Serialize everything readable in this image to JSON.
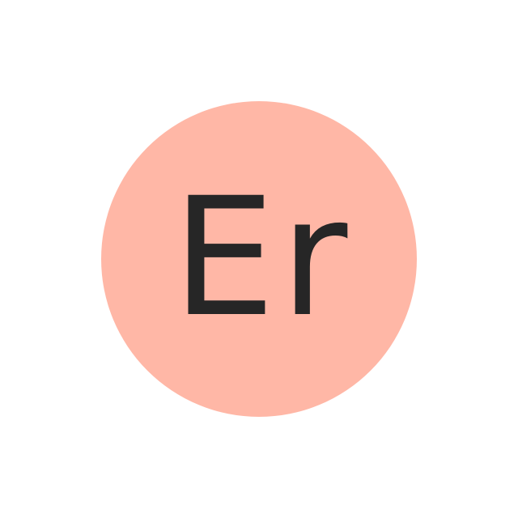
{
  "element": {
    "symbol": "Er",
    "circle_color": "#ffb7a6",
    "text_color": "#262626"
  },
  "page": {
    "background_color": "#ffffff"
  }
}
